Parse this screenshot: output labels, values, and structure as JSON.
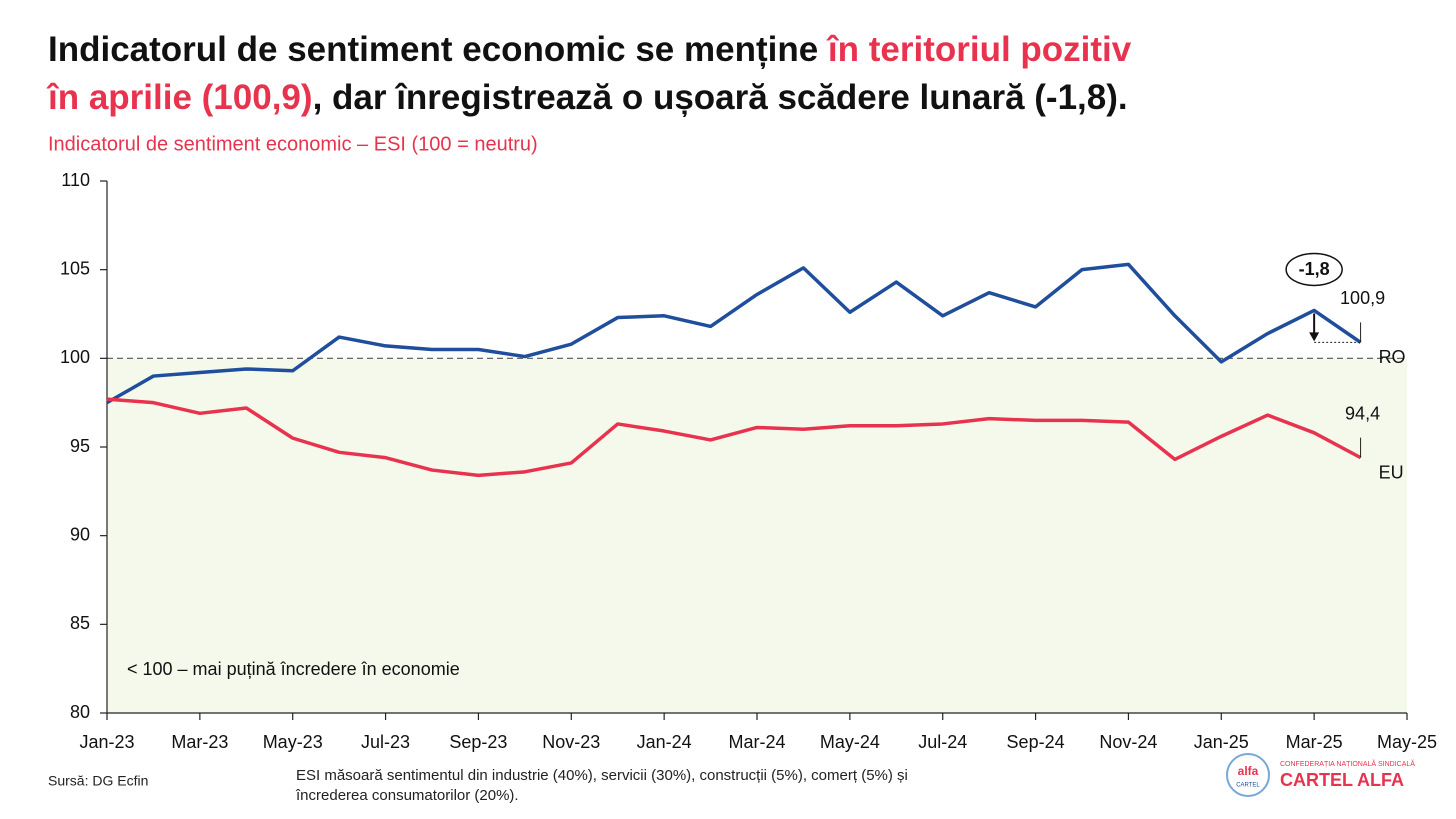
{
  "chart_data": {
    "type": "line",
    "title_lines": [
      [
        {
          "text": "Indicatorul de sentiment economic se menține ",
          "color": "#111111"
        },
        {
          "text": "în teritoriul pozitiv",
          "color": "#e8334f"
        }
      ],
      [
        {
          "text": "în aprilie (100,9)",
          "color": "#e8334f"
        },
        {
          "text": ", dar înregistrează o ușoară scădere lunară (-1,8).",
          "color": "#111111"
        }
      ]
    ],
    "subtitle": "Indicatorul de sentiment economic – ESI (100 = neutru)",
    "categories": [
      "Jan-23",
      null,
      "Mar-23",
      null,
      "May-23",
      null,
      "Jul-23",
      null,
      "Sep-23",
      null,
      "Nov-23",
      null,
      "Jan-24",
      null,
      "Mar-24",
      null,
      "May-24",
      null,
      "Jul-24",
      null,
      "Sep-24",
      null,
      "Nov-24",
      null,
      "Jan-25",
      null,
      "Mar-25",
      null,
      "May-25"
    ],
    "series": [
      {
        "name": "RO",
        "color": "#1f4e9c",
        "values": [
          97.5,
          99.0,
          99.2,
          99.4,
          99.3,
          101.2,
          100.7,
          100.5,
          100.5,
          100.1,
          100.8,
          102.3,
          102.4,
          101.8,
          103.6,
          105.1,
          102.6,
          104.3,
          102.4,
          103.7,
          102.9,
          105.0,
          105.3,
          102.4,
          99.8,
          101.4,
          102.7,
          100.9,
          null
        ],
        "value_labels": [
          null,
          null,
          null,
          null,
          null,
          null,
          null,
          null,
          null,
          null,
          null,
          null,
          null,
          null,
          null,
          null,
          null,
          null,
          null,
          null,
          null,
          null,
          null,
          null,
          null,
          null,
          null,
          "100,9",
          null
        ]
      },
      {
        "name": "EU",
        "color": "#e8334f",
        "values": [
          97.7,
          97.5,
          96.9,
          97.2,
          95.5,
          94.7,
          94.4,
          93.7,
          93.4,
          93.6,
          94.1,
          96.3,
          95.9,
          95.4,
          96.1,
          96.0,
          96.2,
          96.2,
          96.3,
          96.6,
          96.5,
          96.5,
          96.4,
          94.3,
          95.6,
          96.8,
          95.8,
          94.4,
          null
        ],
        "value_labels": [
          null,
          null,
          null,
          null,
          null,
          null,
          null,
          null,
          null,
          null,
          null,
          null,
          null,
          null,
          null,
          null,
          null,
          null,
          null,
          null,
          null,
          null,
          null,
          null,
          null,
          null,
          null,
          "94,4",
          null
        ]
      }
    ],
    "ylim": [
      80,
      110
    ],
    "yticks": [
      80,
      85,
      90,
      95,
      100,
      105,
      110
    ],
    "reference_line": 100,
    "shade_below_reference": true,
    "change_annotation": "-1,8",
    "area_note": "< 100 – mai puțină încredere în economie",
    "source": "Sursă: DG Ecfin",
    "footnote_lines": [
      "ESI măsoară sentimentul din industrie (40%), servicii (30%), construcții (5%), comerț (5%) și",
      "încrederea consumatorilor (20%)."
    ],
    "logo": {
      "name": "CARTEL ALFA",
      "tagline": "CONFEDERAȚIA NAȚIONALĂ SINDICALĂ",
      "mark": "alfa",
      "mark_sub": "CARTEL"
    }
  }
}
